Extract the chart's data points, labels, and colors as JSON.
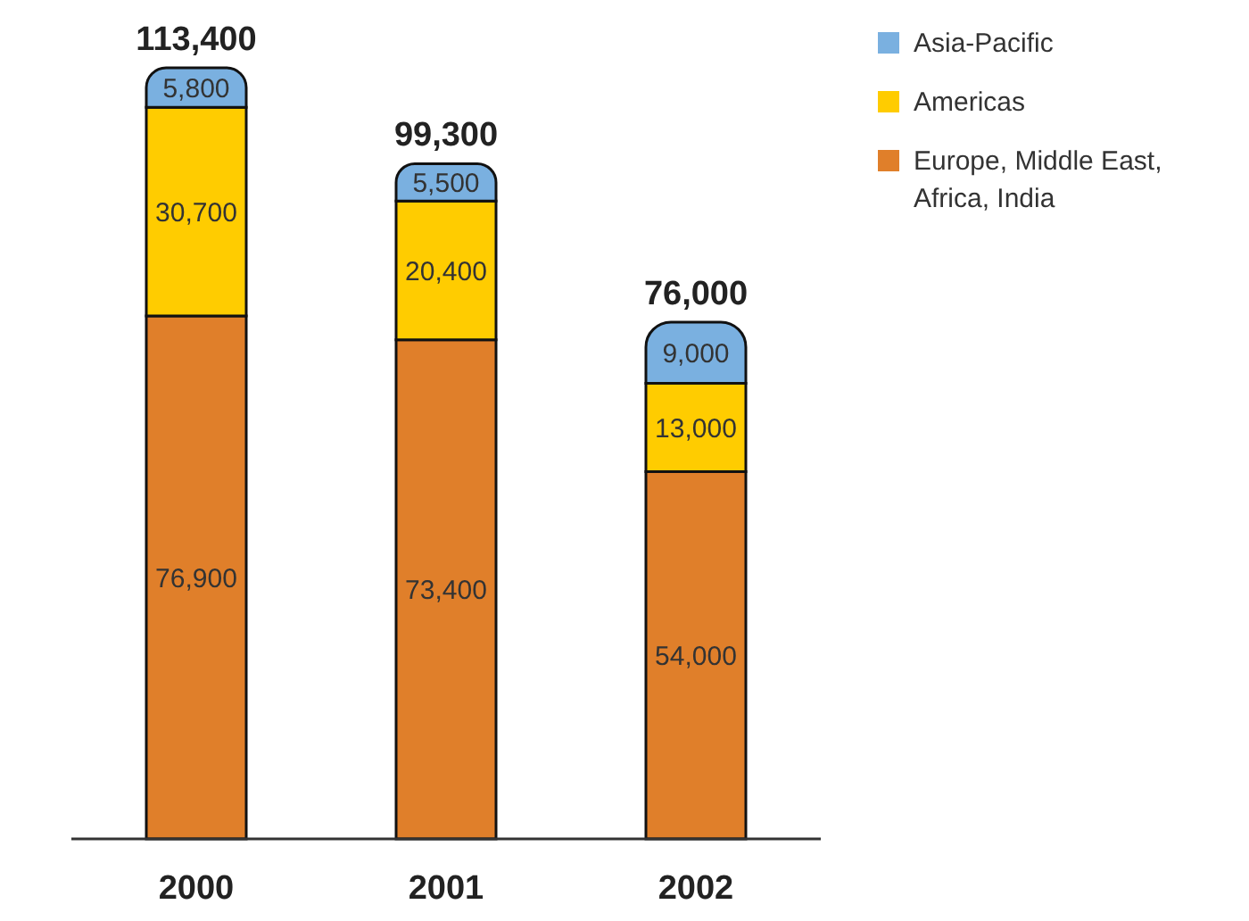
{
  "chart_data": {
    "type": "bar",
    "stacked": true,
    "categories": [
      "2000",
      "2001",
      "2002"
    ],
    "series": [
      {
        "name": "Europe, Middle East, Africa, India",
        "color": "#e07f2a",
        "values": [
          76900,
          73400,
          54000
        ],
        "value_labels": [
          "76,900",
          "73,400",
          "54,000"
        ]
      },
      {
        "name": "Americas",
        "color": "#ffcc00",
        "values": [
          30700,
          20400,
          13000
        ],
        "value_labels": [
          "30,700",
          "20,400",
          "13,000"
        ]
      },
      {
        "name": "Asia-Pacific",
        "color": "#7ab0e0",
        "values": [
          5800,
          5500,
          9000
        ],
        "value_labels": [
          "5,800",
          "5,500",
          "9,000"
        ]
      }
    ],
    "totals": [
      "113,400",
      "99,300",
      "76,000"
    ],
    "legend": "top right",
    "tick_labels": "x",
    "grid": false
  }
}
